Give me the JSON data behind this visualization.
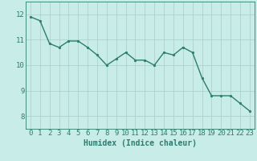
{
  "x": [
    0,
    1,
    2,
    3,
    4,
    5,
    6,
    7,
    8,
    9,
    10,
    11,
    12,
    13,
    14,
    15,
    16,
    17,
    18,
    19,
    20,
    21,
    22,
    23
  ],
  "y": [
    11.9,
    11.75,
    10.85,
    10.7,
    10.95,
    10.95,
    10.7,
    10.4,
    10.0,
    10.25,
    10.5,
    10.2,
    10.2,
    10.0,
    10.5,
    10.4,
    10.7,
    10.5,
    9.5,
    8.8,
    8.8,
    8.8,
    8.5,
    8.2
  ],
  "line_color": "#2d7d6e",
  "marker": "o",
  "marker_size": 1.8,
  "bg_color": "#c8ece8",
  "grid_color": "#b0d0cc",
  "tick_color": "#2d7d6e",
  "xlabel": "Humidex (Indice chaleur)",
  "ylim": [
    7.5,
    12.5
  ],
  "xlim": [
    -0.5,
    23.5
  ],
  "yticks": [
    8,
    9,
    10,
    11,
    12
  ],
  "xticks": [
    0,
    1,
    2,
    3,
    4,
    5,
    6,
    7,
    8,
    9,
    10,
    11,
    12,
    13,
    14,
    15,
    16,
    17,
    18,
    19,
    20,
    21,
    22,
    23
  ],
  "xlabel_fontsize": 7,
  "tick_fontsize": 6.5,
  "line_width": 1.0
}
